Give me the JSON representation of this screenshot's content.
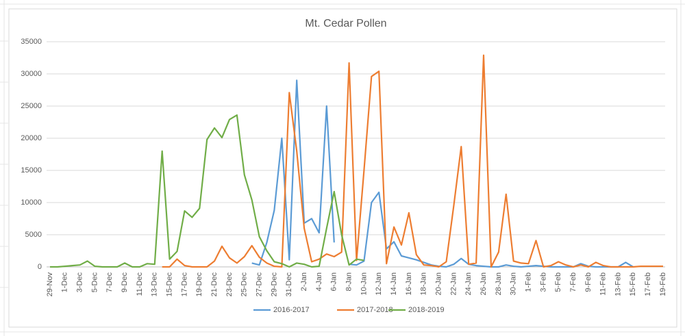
{
  "chart_data": {
    "type": "line",
    "title": "Mt. Cedar Pollen",
    "categories": [
      "29-Nov",
      null,
      "1-Dec",
      null,
      "3-Dec",
      null,
      "5-Dec",
      null,
      "7-Dec",
      null,
      "9-Dec",
      null,
      "11-Dec",
      null,
      "13-Dec",
      null,
      "15-Dec",
      null,
      "17-Dec",
      null,
      "19-Dec",
      null,
      "21-Dec",
      null,
      "23-Dec",
      null,
      "25-Dec",
      null,
      "27-Dec",
      null,
      "29-Dec",
      null,
      "31-Dec",
      null,
      "2-Jan",
      null,
      "4-Jan",
      null,
      "6-Jan",
      null,
      "8-Jan",
      null,
      "10-Jan",
      null,
      "12-Jan",
      null,
      "14-Jan",
      null,
      "16-Jan",
      null,
      "18-Jan",
      null,
      "20-Jan",
      null,
      "22-Jan",
      null,
      "24-Jan",
      null,
      "26-Jan",
      null,
      "28-Jan",
      null,
      "30-Jan",
      null,
      "1-Feb",
      null,
      "3-Feb",
      null,
      "5-Feb",
      null,
      "7-Feb",
      null,
      "9-Feb",
      null,
      "11-Feb",
      null,
      "13-Feb",
      null,
      "15-Feb",
      null,
      "17-Feb",
      null,
      "19-Feb"
    ],
    "series": [
      {
        "name": "2016-2017",
        "color": "#5b9bd5",
        "values": [
          null,
          null,
          null,
          null,
          null,
          null,
          null,
          null,
          null,
          null,
          null,
          null,
          null,
          null,
          null,
          null,
          null,
          null,
          null,
          null,
          null,
          null,
          null,
          null,
          null,
          null,
          null,
          600,
          300,
          3800,
          8800,
          20000,
          1100,
          29000,
          6800,
          7500,
          5300,
          25000,
          3800,
          null,
          400,
          300,
          900,
          10000,
          11600,
          2800,
          3900,
          1700,
          1400,
          1100,
          700,
          300,
          100,
          0,
          400,
          1300,
          400,
          200,
          100,
          0,
          0,
          300,
          100,
          0,
          100,
          200,
          100,
          0,
          0,
          0,
          0,
          500,
          100,
          0,
          0,
          0,
          0,
          700,
          0,
          null,
          null,
          null,
          null
        ]
      },
      {
        "name": "2017-2018",
        "color": "#ed7d31",
        "values": [
          null,
          null,
          null,
          null,
          null,
          null,
          null,
          null,
          null,
          null,
          null,
          null,
          null,
          null,
          null,
          0,
          0,
          1200,
          200,
          0,
          0,
          0,
          900,
          3200,
          1400,
          600,
          1600,
          3300,
          1500,
          600,
          100,
          0,
          27100,
          18000,
          6000,
          800,
          1200,
          2000,
          1600,
          2300,
          31700,
          1000,
          15000,
          29600,
          30400,
          500,
          6200,
          3400,
          8400,
          1900,
          300,
          200,
          0,
          800,
          9500,
          18700,
          400,
          600,
          32900,
          0,
          2300,
          11300,
          900,
          600,
          500,
          4100,
          0,
          200,
          800,
          300,
          0,
          300,
          0,
          700,
          200,
          0,
          0,
          0,
          0,
          100,
          100,
          100,
          100
        ]
      },
      {
        "name": "2018-2019",
        "color": "#70ad47",
        "values": [
          0,
          0,
          100,
          200,
          300,
          900,
          100,
          0,
          0,
          0,
          600,
          0,
          0,
          500,
          400,
          18000,
          1200,
          2400,
          8700,
          7700,
          9100,
          19800,
          21600,
          20100,
          22900,
          23600,
          14300,
          10400,
          4700,
          2500,
          800,
          500,
          0,
          600,
          400,
          0,
          100,
          6000,
          11700,
          5000,
          300,
          1200,
          1000,
          null,
          null,
          null,
          null,
          null,
          null,
          null,
          null,
          null,
          null,
          null,
          null,
          null,
          null,
          null,
          null,
          null,
          null,
          null,
          null,
          null,
          null,
          null,
          null,
          null,
          null,
          null,
          null,
          null,
          null,
          null,
          null,
          null,
          null,
          null,
          null,
          null,
          null,
          null,
          null
        ]
      }
    ],
    "ylim": [
      0,
      35000
    ],
    "yticks": [
      0,
      5000,
      10000,
      15000,
      20000,
      25000,
      30000,
      35000
    ],
    "grid": true,
    "legend": "bottom"
  }
}
